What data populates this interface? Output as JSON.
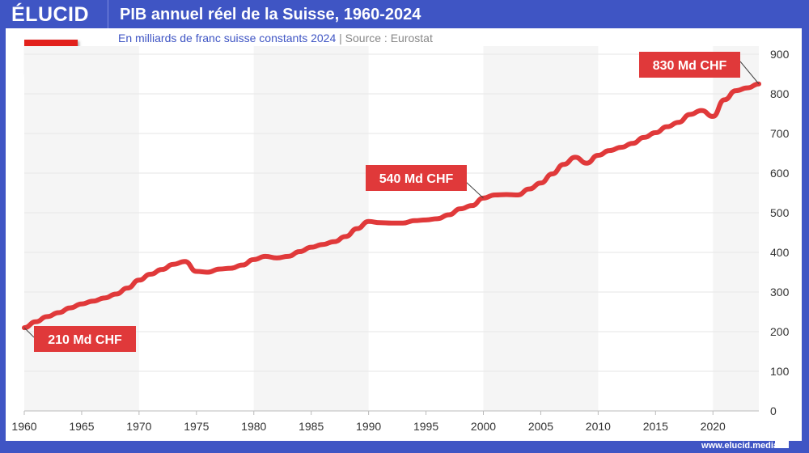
{
  "header": {
    "logo": "ÉLUCID",
    "title": "PIB annuel réel de la Suisse, 1960-2024",
    "subtitle": "En milliards de franc suisse constants 2024",
    "separator": "|",
    "source": "Source : Eurostat",
    "footer": "www.elucid.media",
    "flag_icon": "swiss-flag-icon"
  },
  "colors": {
    "brand": "#3f55c4",
    "line": "#e0393a",
    "band": "#f5f5f5"
  },
  "chart_data": {
    "type": "line",
    "title": "PIB annuel réel de la Suisse, 1960-2024",
    "xlim": [
      1960,
      2024
    ],
    "ylim": [
      0,
      900
    ],
    "x_ticks": [
      1960,
      1965,
      1970,
      1975,
      1980,
      1985,
      1990,
      1995,
      2000,
      2005,
      2010,
      2015,
      2020
    ],
    "y_ticks": [
      0,
      100,
      200,
      300,
      400,
      500,
      600,
      700,
      800,
      900
    ],
    "y_axis_position": "right",
    "grid": true,
    "x": [
      1960,
      1961,
      1962,
      1963,
      1964,
      1965,
      1966,
      1967,
      1968,
      1969,
      1970,
      1971,
      1972,
      1973,
      1974,
      1975,
      1976,
      1977,
      1978,
      1979,
      1980,
      1981,
      1982,
      1983,
      1984,
      1985,
      1986,
      1987,
      1988,
      1989,
      1990,
      1991,
      1992,
      1993,
      1994,
      1995,
      1996,
      1997,
      1998,
      1999,
      2000,
      2001,
      2002,
      2003,
      2004,
      2005,
      2006,
      2007,
      2008,
      2009,
      2010,
      2011,
      2012,
      2013,
      2014,
      2015,
      2016,
      2017,
      2018,
      2019,
      2020,
      2021,
      2022,
      2023,
      2024
    ],
    "y": [
      210,
      225,
      238,
      248,
      260,
      270,
      277,
      285,
      295,
      310,
      330,
      345,
      357,
      370,
      377,
      352,
      350,
      358,
      360,
      368,
      382,
      390,
      386,
      390,
      402,
      413,
      420,
      427,
      440,
      460,
      478,
      475,
      474,
      474,
      480,
      482,
      485,
      495,
      510,
      518,
      537,
      545,
      546,
      545,
      560,
      575,
      598,
      622,
      640,
      625,
      645,
      657,
      665,
      675,
      690,
      702,
      717,
      728,
      748,
      758,
      743,
      785,
      808,
      815,
      825
    ],
    "annotations": [
      {
        "x": 1960,
        "label": "210 Md CHF"
      },
      {
        "x": 2000,
        "label": "540 Md CHF"
      },
      {
        "x": 2024,
        "label": "830 Md CHF"
      }
    ]
  }
}
